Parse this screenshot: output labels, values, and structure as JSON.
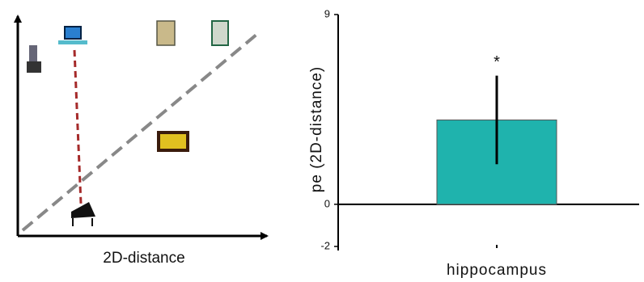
{
  "diagram": {
    "x_label": "2D-distance"
  },
  "chart_data": {
    "type": "bar",
    "y_label": "pe (2D-distance)",
    "annotation": "*",
    "categories": [
      "hippocampus"
    ],
    "values": [
      4
    ],
    "errors": [
      2.1
    ],
    "color": "#1fb3ad",
    "ylim": [
      -2,
      9
    ],
    "yticks": [
      -2,
      0,
      9
    ]
  }
}
